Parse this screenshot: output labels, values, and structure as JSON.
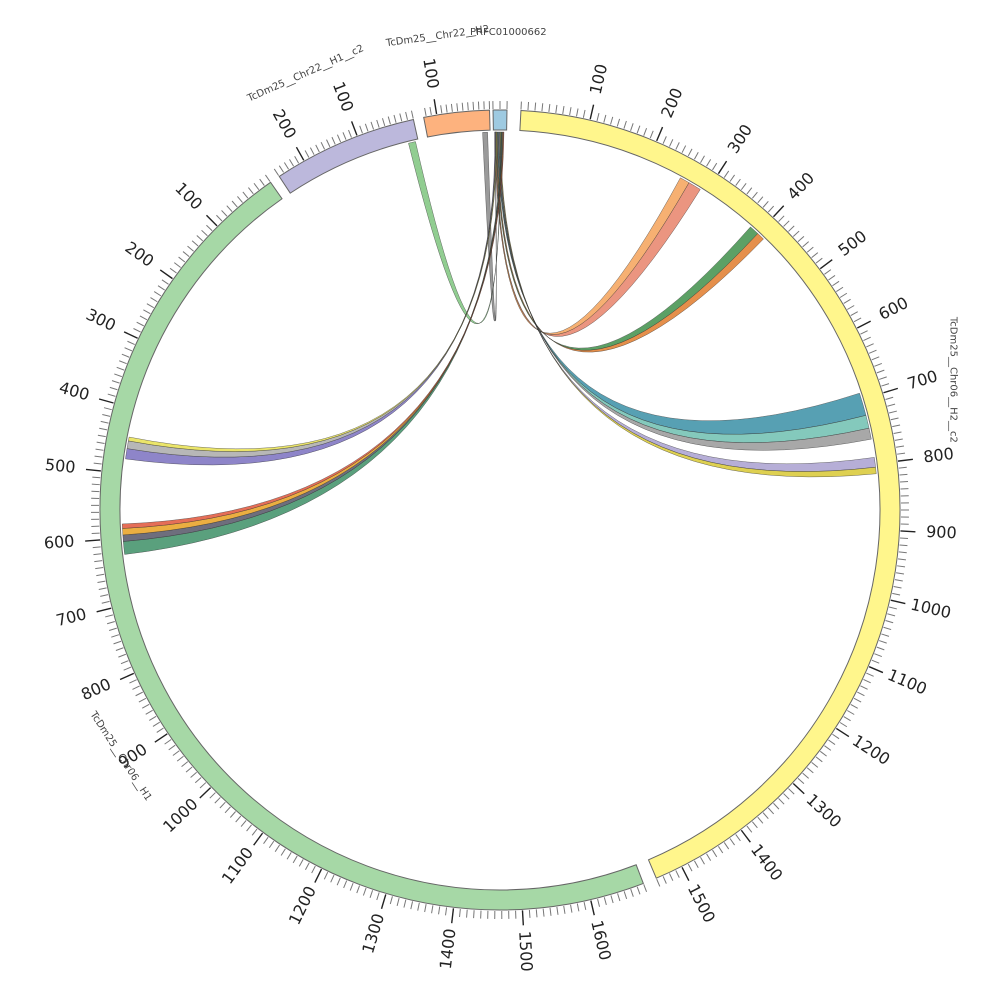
{
  "chart_data": {
    "type": "chord",
    "segments": [
      {
        "name": "TcDm25__Chr06__H1",
        "length": 1680,
        "color": "#a6d8a6",
        "ticks": [
          "100",
          "200",
          "300",
          "400",
          "500",
          "600",
          "700",
          "800",
          "900",
          "1000",
          "1100",
          "1200",
          "1300",
          "1400",
          "1500",
          "1600"
        ]
      },
      {
        "name": "TcDm25__Chr22__H1__c2",
        "length": 250,
        "color": "#bcb8dc",
        "ticks": [
          "100",
          "200"
        ]
      },
      {
        "name": "TcDm25__Chr22__H2",
        "length": 125,
        "color": "#fdb27e",
        "ticks": [
          "100"
        ]
      },
      {
        "name": "PRFC01000662",
        "length": 20,
        "color": "#9ecae1",
        "ticks": []
      },
      {
        "name": "TcDm25__Chr06__H2__c2",
        "length": 1540,
        "color": "#fff68c",
        "ticks": [
          "100",
          "200",
          "300",
          "400",
          "500",
          "600",
          "700",
          "800",
          "900",
          "1000",
          "1100",
          "1200",
          "1300",
          "1400",
          "1500"
        ]
      }
    ],
    "links": [
      {
        "from": "PRFC01000662",
        "to": "TcDm25__Chr22__H2",
        "color": "#888888",
        "to_pos": [
          5,
          15
        ]
      },
      {
        "from": "PRFC01000662",
        "to": "TcDm25__Chr06__H2__c2",
        "color": "#e8826a",
        "to_pos": [
          270,
          290
        ]
      },
      {
        "from": "PRFC01000662",
        "to": "TcDm25__Chr06__H2__c2",
        "color": "#f4a259",
        "to_pos": [
          255,
          270
        ]
      },
      {
        "from": "PRFC01000662",
        "to": "TcDm25__Chr06__H2__c2",
        "color": "#3f8f4a",
        "to_pos": [
          385,
          400
        ]
      },
      {
        "from": "PRFC01000662",
        "to": "TcDm25__Chr06__H2__c2",
        "color": "#e07b2b",
        "to_pos": [
          400,
          412
        ]
      },
      {
        "from": "PRFC01000662",
        "to": "TcDm25__Chr06__H2__c2",
        "color": "#3a8fa6",
        "to_pos": [
          690,
          725
        ]
      },
      {
        "from": "PRFC01000662",
        "to": "TcDm25__Chr06__H2__c2",
        "color": "#6fbfb0",
        "to_pos": [
          725,
          745
        ]
      },
      {
        "from": "PRFC01000662",
        "to": "TcDm25__Chr06__H2__c2",
        "color": "#999999",
        "to_pos": [
          745,
          762
        ]
      },
      {
        "from": "PRFC01000662",
        "to": "TcDm25__Chr06__H2__c2",
        "color": "#a9a0d0",
        "to_pos": [
          790,
          805
        ]
      },
      {
        "from": "PRFC01000662",
        "to": "TcDm25__Chr06__H2__c2",
        "color": "#d8c832",
        "to_pos": [
          805,
          815
        ]
      },
      {
        "from": "PRFC01000662",
        "to": "TcDm25__Chr22__H1__c2",
        "color": "#7ec47e",
        "to_pos": [
          5,
          18
        ]
      },
      {
        "from": "PRFC01000662",
        "to": "TcDm25__Chr06__H1",
        "color": "#3d8f66",
        "to_pos": [
          605,
          625
        ]
      },
      {
        "from": "PRFC01000662",
        "to": "TcDm25__Chr06__H1",
        "color": "#555566",
        "to_pos": [
          595,
          605
        ]
      },
      {
        "from": "PRFC01000662",
        "to": "TcDm25__Chr06__H1",
        "color": "#e8a020",
        "to_pos": [
          585,
          595
        ]
      },
      {
        "from": "PRFC01000662",
        "to": "TcDm25__Chr06__H1",
        "color": "#e0553a",
        "to_pos": [
          578,
          585
        ]
      },
      {
        "from": "PRFC01000662",
        "to": "TcDm25__Chr06__H1",
        "color": "#7a70c0",
        "to_pos": [
          462,
          478
        ]
      },
      {
        "from": "PRFC01000662",
        "to": "TcDm25__Chr06__H1",
        "color": "#aaaaaa",
        "to_pos": [
          450,
          462
        ]
      },
      {
        "from": "PRFC01000662",
        "to": "TcDm25__Chr06__H1",
        "color": "#e8e050",
        "to_pos": [
          444,
          450
        ]
      }
    ]
  }
}
